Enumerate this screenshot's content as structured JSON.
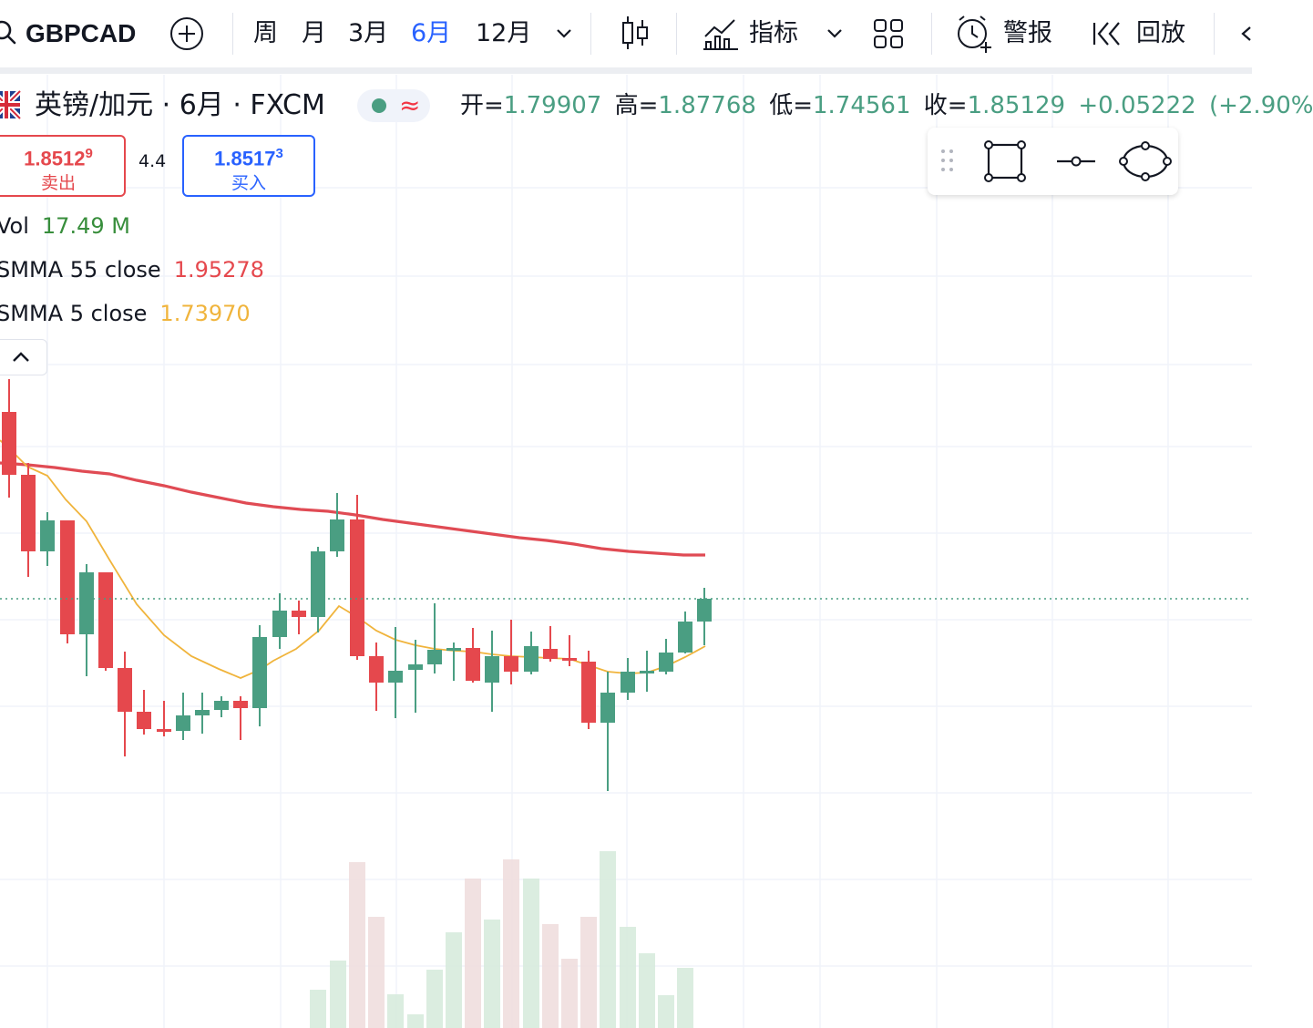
{
  "toolbar": {
    "symbol": "GBPCAD",
    "intervals": [
      {
        "label": "周",
        "active": false
      },
      {
        "label": "月",
        "active": false
      },
      {
        "label": "3月",
        "active": false
      },
      {
        "label": "6月",
        "active": true
      },
      {
        "label": "12月",
        "active": false
      }
    ],
    "indicators_label": "指标",
    "alert_label": "警报",
    "replay_label": "回放",
    "icons": [
      "search-icon",
      "add-symbol-icon",
      "chevron-down-icon",
      "candle-type-icon",
      "indicators-icon",
      "layout-grid-icon",
      "alarm-icon",
      "replay-icon"
    ]
  },
  "legend": {
    "title": "英镑/加元 · 6月 · FXCM",
    "status_symbol": "≈",
    "ohlc": {
      "open_label": "开=",
      "open": "1.79907",
      "high_label": "高=",
      "high": "1.87768",
      "low_label": "低=",
      "low": "1.74561",
      "close_label": "收=",
      "close": "1.85129",
      "change": "+0.05222",
      "change_pct": "(+2.90%"
    }
  },
  "quotes": {
    "sell_price": "1.8512",
    "sell_price_sup": "9",
    "sell_label": "卖出",
    "spread": "4.4",
    "buy_price": "1.8517",
    "buy_price_sup": "3",
    "buy_label": "买入"
  },
  "indicators": [
    {
      "name": "Vol",
      "value": "17.49 M",
      "color": "#388e3c"
    },
    {
      "name": "SMMA 55 close",
      "value": "1.95278",
      "color": "#e5484d"
    },
    {
      "name": "SMMA 5 close",
      "value": "1.73970",
      "color": "#f0b43c"
    }
  ],
  "colors": {
    "up": "#4a9e82",
    "down": "#e5484d",
    "smma55": "#e04b54",
    "smma5": "#f0b43c",
    "grid": "#f0f3fa"
  }
}
